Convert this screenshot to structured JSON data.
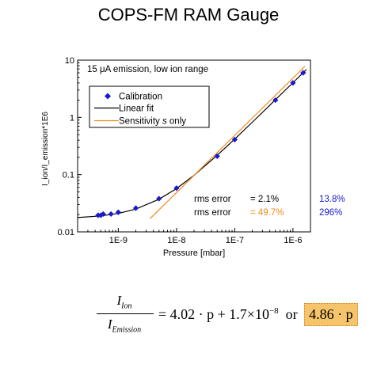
{
  "page": {
    "title": "COPS-FM RAM Gauge"
  },
  "formula": {
    "numerator": "I",
    "numerator_sub": "Ion",
    "denominator": "I",
    "denominator_sub": "Emission",
    "rhs": "= 4.02 · p + 1.7×10",
    "rhs_exp": "−8",
    "or": "or",
    "boxed": "4.86 · p",
    "box_color": "#f6c46a"
  },
  "chart_data": {
    "type": "scatter",
    "title": "",
    "subtitle": "15 μA emission, low ion range",
    "xlabel": "Pressure [mbar]",
    "ylabel": "I_ion/I_emission*1E6",
    "xscale": "log",
    "yscale": "log",
    "xlim": [
      2e-10,
      2e-06
    ],
    "ylim": [
      0.01,
      10
    ],
    "xticks": [
      1e-09,
      1e-08,
      1e-07,
      1e-06
    ],
    "xtick_labels": [
      "1E-9",
      "1E-8",
      "1E-7",
      "1E-6"
    ],
    "yticks": [
      0.01,
      0.1,
      1,
      10
    ],
    "ytick_labels": [
      "0.01",
      "0.1",
      "1",
      "10"
    ],
    "grid": false,
    "legend_position": "top-left",
    "series": [
      {
        "name": "Calibration",
        "kind": "points",
        "color": "#1a1acc",
        "x": [
          4.5e-10,
          5e-10,
          5.5e-10,
          7.5e-10,
          1e-09,
          2e-09,
          5e-09,
          1e-08,
          5e-08,
          1e-07,
          5e-07,
          1e-06,
          1.5e-06
        ],
        "y": [
          0.0195,
          0.0195,
          0.0205,
          0.0205,
          0.022,
          0.026,
          0.038,
          0.058,
          0.21,
          0.41,
          2.0,
          4.0,
          6.0
        ]
      },
      {
        "name": "Linear fit",
        "kind": "line",
        "color": "#000000",
        "model": "y = 4.02e6 * x + 0.017",
        "x": [
          2e-10,
          5e-10,
          1e-09,
          2e-09,
          5e-09,
          1e-08,
          2e-08,
          5e-08,
          1e-07,
          2e-07,
          5e-07,
          1e-06,
          1.7e-06
        ],
        "y": [
          0.0178,
          0.019,
          0.021,
          0.025,
          0.0371,
          0.0572,
          0.0974,
          0.218,
          0.419,
          0.821,
          2.03,
          4.04,
          6.85
        ]
      },
      {
        "name": "Sensitivity s only",
        "kind": "line",
        "color": "#f08a1c",
        "model": "y = 4.86e6 * x",
        "x": [
          3.5e-09,
          1e-08,
          1e-07,
          1e-06,
          1.6e-06
        ],
        "y": [
          0.017,
          0.0486,
          0.486,
          4.86,
          7.78
        ]
      }
    ],
    "annotations": [
      {
        "label": "rms error",
        "value": "= 2.1%",
        "value_color": "#000000",
        "extra": "13.8%",
        "extra_color": "#1a1acc"
      },
      {
        "label": "rms error",
        "value": "= 49.7%",
        "value_color": "#f08a1c",
        "extra": "296%",
        "extra_color": "#1a1acc"
      }
    ]
  }
}
